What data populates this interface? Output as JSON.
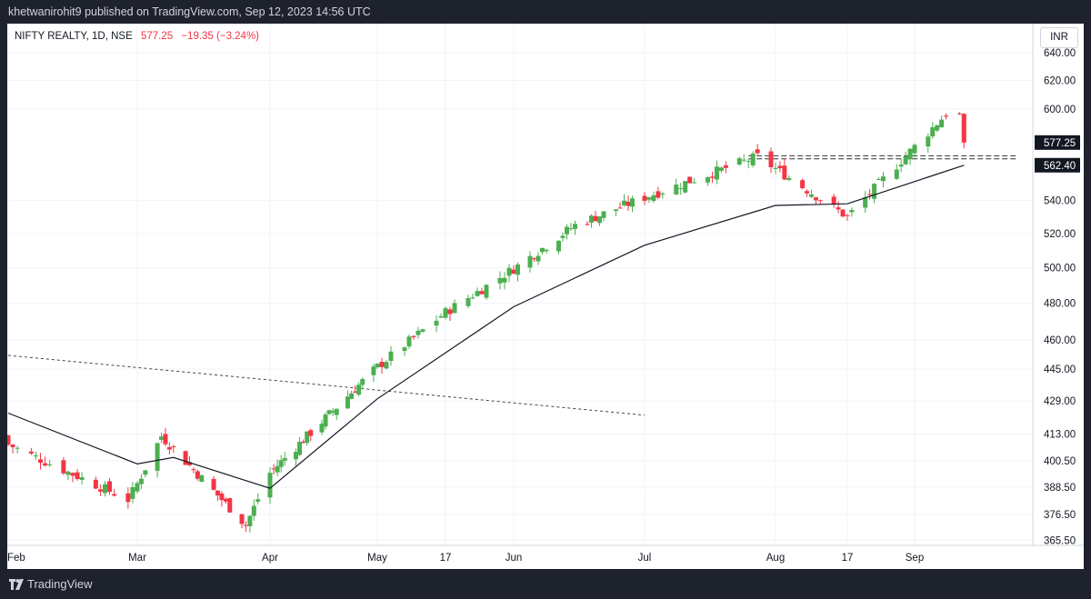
{
  "header": {
    "publisher_line": "khetwanirohit9 published on TradingView.com, Sep 12, 2023 14:56 UTC"
  },
  "symbol": {
    "name": "NIFTY REALTY, 1D, NSE",
    "price": "577.25",
    "change": "−19.35 (−3.24%)"
  },
  "currency": "INR",
  "footer": {
    "brand": "TradingView"
  },
  "colors": {
    "up": "#26a69a",
    "up_candle": "#4caf50",
    "down": "#f23645",
    "ma": "#131722",
    "background": "#ffffff"
  },
  "chart_data": {
    "type": "candlestick",
    "scale": "log",
    "ylim": [
      365.5,
      650
    ],
    "y_ticks": [
      "640.00",
      "620.00",
      "600.00",
      "577.25",
      "562.40",
      "540.00",
      "520.00",
      "500.00",
      "480.00",
      "460.00",
      "445.00",
      "429.00",
      "413.00",
      "400.50",
      "388.50",
      "376.50",
      "365.50"
    ],
    "price_tags": [
      {
        "label": "577.25",
        "value": 577.25
      },
      {
        "label": "562.40",
        "value": 562.4
      }
    ],
    "x_labels": [
      {
        "label": "Feb",
        "date": "2023-02-01"
      },
      {
        "label": "Mar",
        "date": "2023-03-01"
      },
      {
        "label": "Apr",
        "date": "2023-04-03"
      },
      {
        "label": "May",
        "date": "2023-05-02"
      },
      {
        "label": "17",
        "date": "2023-05-17"
      },
      {
        "label": "Jun",
        "date": "2023-06-01"
      },
      {
        "label": "Jul",
        "date": "2023-07-03"
      },
      {
        "label": "Aug",
        "date": "2023-08-01"
      },
      {
        "label": "17",
        "date": "2023-08-17"
      },
      {
        "label": "Sep",
        "date": "2023-09-01"
      }
    ],
    "key_closes": [
      {
        "date": "2023-02-01",
        "close": 408
      },
      {
        "date": "2023-02-27",
        "close": 383
      },
      {
        "date": "2023-03-07",
        "close": 412
      },
      {
        "date": "2023-03-28",
        "close": 372
      },
      {
        "date": "2023-04-03",
        "close": 395
      },
      {
        "date": "2023-05-17",
        "close": 475
      },
      {
        "date": "2023-06-16",
        "close": 525
      },
      {
        "date": "2023-07-28",
        "close": 568
      },
      {
        "date": "2023-08-17",
        "close": 530
      },
      {
        "date": "2023-09-08",
        "close": 596.6
      },
      {
        "date": "2023-09-12",
        "close": 577.25
      }
    ],
    "moving_average": [
      {
        "date": "2023-02-01",
        "value": 423
      },
      {
        "date": "2023-03-01",
        "value": 399
      },
      {
        "date": "2023-03-10",
        "value": 402
      },
      {
        "date": "2023-04-03",
        "value": 388
      },
      {
        "date": "2023-05-02",
        "value": 430
      },
      {
        "date": "2023-06-01",
        "value": 478
      },
      {
        "date": "2023-07-03",
        "value": 513
      },
      {
        "date": "2023-08-01",
        "value": 537
      },
      {
        "date": "2023-08-17",
        "value": 538
      },
      {
        "date": "2023-09-12",
        "value": 562.4
      }
    ],
    "trendline": {
      "style": "dashed",
      "from": {
        "date": "2023-02-01",
        "value": 452
      },
      "to": {
        "date": "2023-07-03",
        "value": 422
      }
    },
    "horizontal_levels": [
      {
        "style": "dashed",
        "value": 568.5,
        "from": "2023-07-26",
        "to": "2023-09-24"
      },
      {
        "style": "dashed",
        "value": 566.5,
        "from": "2023-07-26",
        "to": "2023-09-24"
      }
    ]
  }
}
